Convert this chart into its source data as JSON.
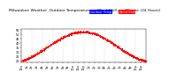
{
  "title": "Milwaukee Weather  Outdoor Temperature vs Wind Chill per Minute (24 Hours)",
  "background_color": "#ffffff",
  "plot_bg_color": "#ffffff",
  "grid_color": "#aaaaaa",
  "dot_color": "#ff0000",
  "legend_blue": "#0000ff",
  "legend_red": "#ff0000",
  "legend_blue_label": "Outdoor Temp",
  "legend_red_label": "Wind Chill",
  "ylim": [
    18,
    56
  ],
  "yticks": [
    20,
    25,
    30,
    35,
    40,
    45,
    50,
    55
  ],
  "xlim": [
    0,
    1440
  ],
  "title_fontsize": 3.2,
  "tick_fontsize": 2.5,
  "dot_size": 0.4,
  "xtick_positions": [
    0,
    60,
    120,
    180,
    240,
    300,
    360,
    420,
    480,
    540,
    600,
    660,
    720,
    780,
    840,
    900,
    960,
    1020,
    1080,
    1140,
    1200,
    1260,
    1320,
    1380
  ],
  "xtick_labels": [
    "12a",
    "1a",
    "2a",
    "3a",
    "4a",
    "5a",
    "6a",
    "7a",
    "8a",
    "9a",
    "10a",
    "11a",
    "12p",
    "1p",
    "2p",
    "3p",
    "4p",
    "5p",
    "6p",
    "7p",
    "8p",
    "9p",
    "10p",
    "11p"
  ],
  "vgrid_positions": [
    120,
    240,
    360,
    480,
    600,
    720,
    840,
    960,
    1080,
    1200,
    1320
  ]
}
